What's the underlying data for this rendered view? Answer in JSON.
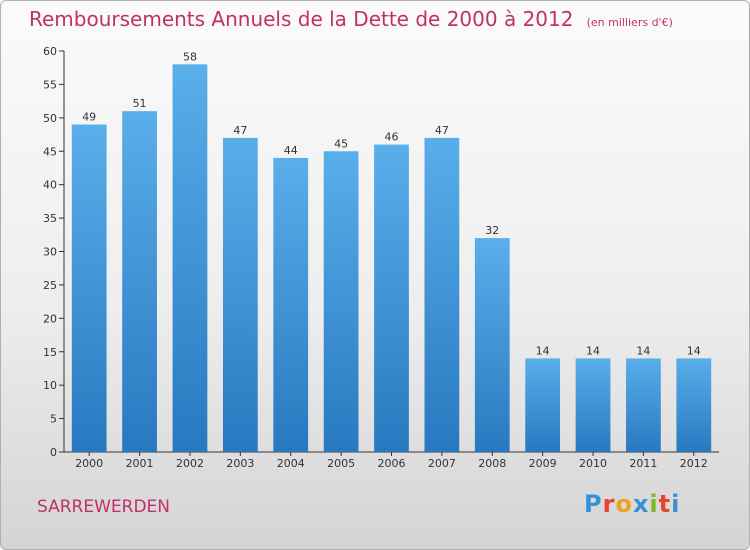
{
  "title": "Remboursements Annuels de la Dette de 2000 à 2012",
  "unit": "(en milliers d'€)",
  "commune": "SARREWERDEN",
  "logo": {
    "letters": [
      {
        "ch": "P",
        "color": "#3a8fd6"
      },
      {
        "ch": "r",
        "color": "#e8442e"
      },
      {
        "ch": "o",
        "color": "#f0a11f"
      },
      {
        "ch": "x",
        "color": "#3a8fd6"
      },
      {
        "ch": "i",
        "color": "#7bb82a"
      },
      {
        "ch": "t",
        "color": "#e8442e"
      },
      {
        "ch": "i",
        "color": "#3a8fd6"
      }
    ]
  },
  "colors": {
    "bar_top": "#5aaeea",
    "bar_bottom": "#2879c0",
    "title": "#c0306a",
    "axis": "#333333"
  },
  "chart_data": {
    "type": "bar",
    "categories": [
      "2000",
      "2001",
      "2002",
      "2003",
      "2004",
      "2005",
      "2006",
      "2007",
      "2008",
      "2009",
      "2010",
      "2011",
      "2012"
    ],
    "values": [
      49,
      51,
      58,
      47,
      44,
      45,
      46,
      47,
      32,
      14,
      14,
      14,
      14
    ],
    "ylim": [
      0,
      60
    ],
    "yticks": [
      0,
      5,
      10,
      15,
      20,
      25,
      30,
      35,
      40,
      45,
      50,
      55,
      60
    ],
    "grid": false,
    "data_labels": true
  }
}
